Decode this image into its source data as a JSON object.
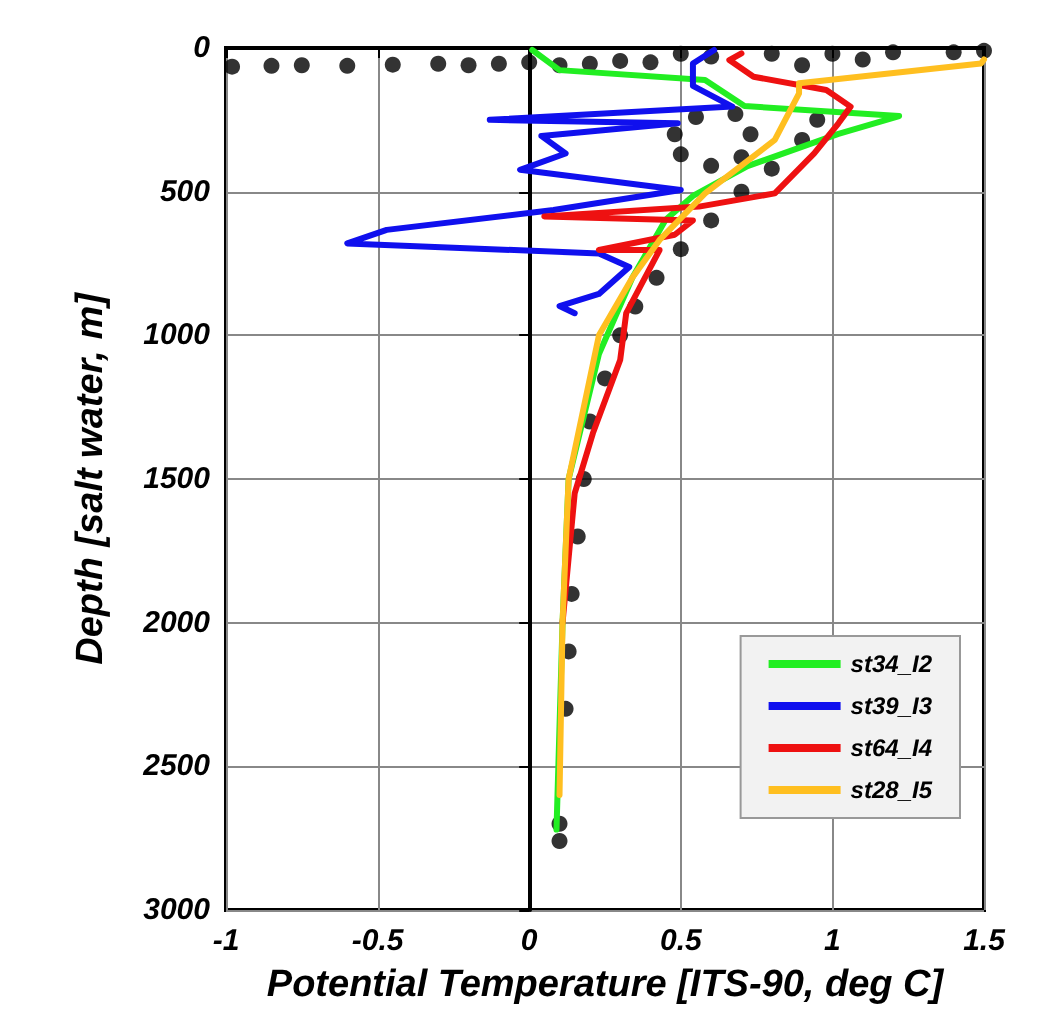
{
  "chart_data": {
    "type": "line",
    "xlabel": "Potential Temperature [ITS-90, deg C]",
    "ylabel": "Depth [salt water, m]",
    "xlim": [
      -1,
      1.5
    ],
    "xticks": [
      -1,
      -0.5,
      0,
      0.5,
      1,
      1.5
    ],
    "ylim": [
      3000,
      0
    ],
    "yticks": [
      0,
      500,
      1000,
      1500,
      2000,
      2500,
      3000
    ],
    "grid": true,
    "legend": "bottom right",
    "marker": "none",
    "line_style": "solid",
    "series": [
      {
        "type": "scatter",
        "marker": "circle",
        "color": "#000000",
        "x": [
          -0.98,
          -0.85,
          -0.75,
          -0.6,
          -0.45,
          -0.3,
          -0.2,
          -0.1,
          0,
          0.1,
          0.2,
          0.3,
          0.4,
          0.5,
          0.6,
          0.8,
          0.9,
          1.0,
          1.1,
          1.2,
          1.4,
          1.5,
          0.62,
          0.55,
          0.48,
          0.5,
          0.6,
          0.7,
          0.73,
          0.68,
          0.95,
          0.9,
          0.8,
          0.7,
          0.6,
          0.5,
          0.42,
          0.35,
          0.3,
          0.25,
          0.2,
          0.18,
          0.16,
          0.14,
          0.13,
          0.12,
          0.11,
          0.1,
          0.1
        ],
        "values": [
          65,
          62,
          60,
          62,
          58,
          55,
          60,
          55,
          50,
          60,
          55,
          45,
          50,
          20,
          30,
          20,
          60,
          20,
          40,
          15,
          15,
          10,
          null,
          240,
          300,
          370,
          410,
          380,
          300,
          230,
          250,
          320,
          420,
          500,
          600,
          700,
          800,
          900,
          1000,
          1150,
          1300,
          1500,
          1700,
          1900,
          2100,
          2300,
          null,
          2700,
          2760
        ]
      },
      {
        "name": "st34_I2",
        "color": "#22ee22",
        "x": [
          0.01,
          0.1,
          0.58,
          0.71,
          1.22,
          1.02,
          0.72,
          0.54,
          0.45,
          0.34,
          0.23,
          0.13,
          0.11,
          0.09
        ],
        "values": [
          7,
          77,
          111,
          202,
          237,
          299,
          411,
          515,
          598,
          800,
          1065,
          1500,
          2000,
          2720
        ]
      },
      {
        "name": "st39_I3",
        "color": "#1010ee",
        "x": [
          0.61,
          0.54,
          0.54,
          0.67,
          -0.13,
          0.49,
          0.04,
          0.12,
          -0.03,
          0.5,
          0.08,
          -0.47,
          -0.6,
          0.23,
          0.33,
          0.23,
          0.1,
          0.15
        ],
        "values": [
          7,
          54,
          132,
          204,
          250,
          262,
          306,
          367,
          424,
          494,
          564,
          633,
          680,
          715,
          762,
          856,
          898,
          923
        ]
      },
      {
        "name": "st64_I4",
        "color": "#ee1111",
        "x": [
          0.7,
          0.66,
          0.74,
          0.98,
          1.06,
          1.02,
          0.94,
          0.81,
          0.56,
          0.05,
          0.54,
          0.48,
          0.23,
          0.43,
          0.32,
          0.3,
          0.21,
          0.15,
          0.11
        ],
        "values": [
          19,
          42,
          100,
          146,
          204,
          262,
          367,
          506,
          552,
          586,
          600,
          650,
          703,
          703,
          923,
          1086,
          1341,
          1550,
          2000
        ]
      },
      {
        "name": "st28_I5",
        "color": "#ffbf20",
        "x": [
          1.5,
          1.49,
          0.89,
          0.89,
          0.81,
          0.58,
          0.43,
          0.34,
          0.23,
          0.13,
          0.11,
          0.1
        ],
        "values": [
          40,
          54,
          123,
          158,
          320,
          506,
          668,
          800,
          1000,
          1500,
          2000,
          2600
        ]
      }
    ]
  }
}
